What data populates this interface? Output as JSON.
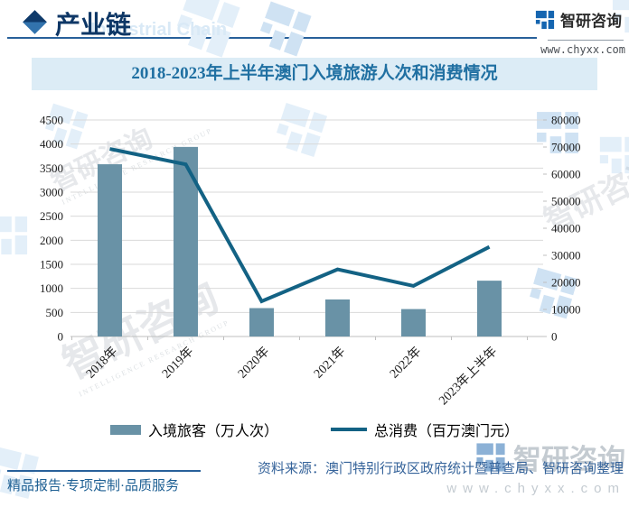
{
  "header": {
    "section_title": "产业链",
    "section_title_en": "Industrial Chain",
    "brand_name": "智研咨询",
    "brand_url": "www.chyxx.com"
  },
  "chart_data": {
    "type": "bar+line",
    "title": "2018-2023年上半年澳门入境旅游人次和消费情况",
    "categories": [
      "2018年",
      "2019年",
      "2020年",
      "2021年",
      "2022年",
      "2023年上半年"
    ],
    "series": [
      {
        "name": "入境旅客（万人次）",
        "type": "bar",
        "axis": "left",
        "values": [
          3580,
          3940,
          590,
          770,
          570,
          1160
        ],
        "color": "#6992a6"
      },
      {
        "name": "总消费（百万澳门元）",
        "type": "line",
        "axis": "right",
        "values": [
          69300,
          63600,
          13000,
          24800,
          18700,
          33100
        ],
        "color": "#136284"
      }
    ],
    "left_axis": {
      "min": 0,
      "max": 4500,
      "step": 500,
      "ticks": [
        0,
        500,
        1000,
        1500,
        2000,
        2500,
        3000,
        3500,
        4000,
        4500
      ]
    },
    "right_axis": {
      "min": 0,
      "max": 80000,
      "step": 10000,
      "ticks": [
        0,
        10000,
        20000,
        30000,
        40000,
        50000,
        60000,
        70000,
        80000
      ]
    },
    "grid": true,
    "legend_position": "bottom"
  },
  "footer": {
    "tagline": "精品报告·专项定制·品质服务",
    "source": "资料来源：澳门特别行政区政府统计暨普查局、智研咨询整理"
  },
  "watermark": {
    "brand": "智研咨询",
    "caption": "INTELLIGENCE RESEARCH GROUP",
    "url": "www.chyxx.com"
  },
  "colors": {
    "bar": "#6992a6",
    "line": "#136284",
    "title_text": "#2070a2",
    "title_band_bg": "#dcecf6",
    "header_navy": "#0e3766",
    "brand_blue": "#1565b0",
    "grid": "#d9d9d9"
  }
}
